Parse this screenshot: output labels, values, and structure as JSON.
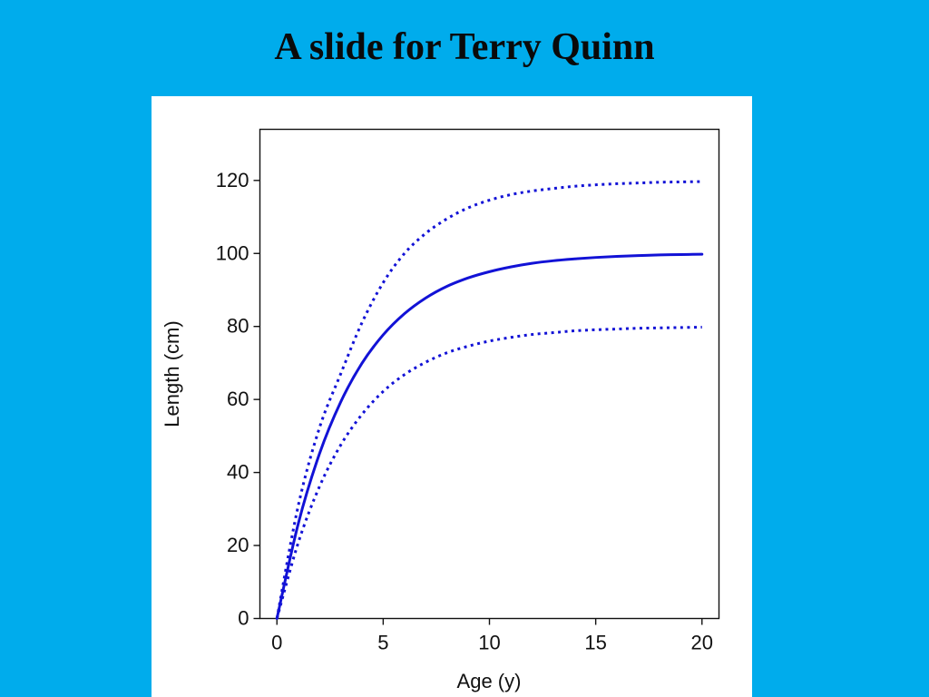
{
  "slide": {
    "title": "A slide for Terry Quinn"
  },
  "colors": {
    "background": "#00acec",
    "panel": "#ffffff",
    "series": "#1212d6",
    "axis": "#111111"
  },
  "chart_data": {
    "type": "line",
    "title": "",
    "xlabel": "Age (y)",
    "ylabel": "Length (cm)",
    "xlim": [
      -0.8,
      20.8
    ],
    "ylim": [
      0,
      134
    ],
    "xticks": [
      0,
      5,
      10,
      15,
      20
    ],
    "yticks": [
      0,
      20,
      40,
      60,
      80,
      100,
      120
    ],
    "grid": false,
    "legend": "none",
    "x": [
      0,
      1,
      2,
      3,
      4,
      5,
      6,
      7,
      8,
      9,
      10,
      11,
      12,
      13,
      14,
      15,
      16,
      17,
      18,
      19,
      20
    ],
    "series": [
      {
        "style": "dotted",
        "values": [
          0,
          30.8,
          52.2,
          67.0,
          81.0,
          92.0,
          100.0,
          105.5,
          109.5,
          112.5,
          114.6,
          116.1,
          117.1,
          117.8,
          118.4,
          118.8,
          119.1,
          119.3,
          119.5,
          119.6,
          119.7
        ]
      },
      {
        "style": "solid",
        "values": [
          0,
          25.9,
          45.1,
          59.3,
          69.9,
          77.7,
          83.5,
          87.8,
          91.0,
          93.3,
          95.0,
          96.3,
          97.3,
          98.0,
          98.5,
          98.9,
          99.2,
          99.4,
          99.6,
          99.7,
          99.8
        ]
      },
      {
        "style": "dotted",
        "values": [
          0,
          20.7,
          36.1,
          47.5,
          55.9,
          62.2,
          66.8,
          70.2,
          72.8,
          74.6,
          76.0,
          77.0,
          77.8,
          78.3,
          78.8,
          79.1,
          79.3,
          79.5,
          79.6,
          79.7,
          79.8
        ]
      }
    ]
  }
}
